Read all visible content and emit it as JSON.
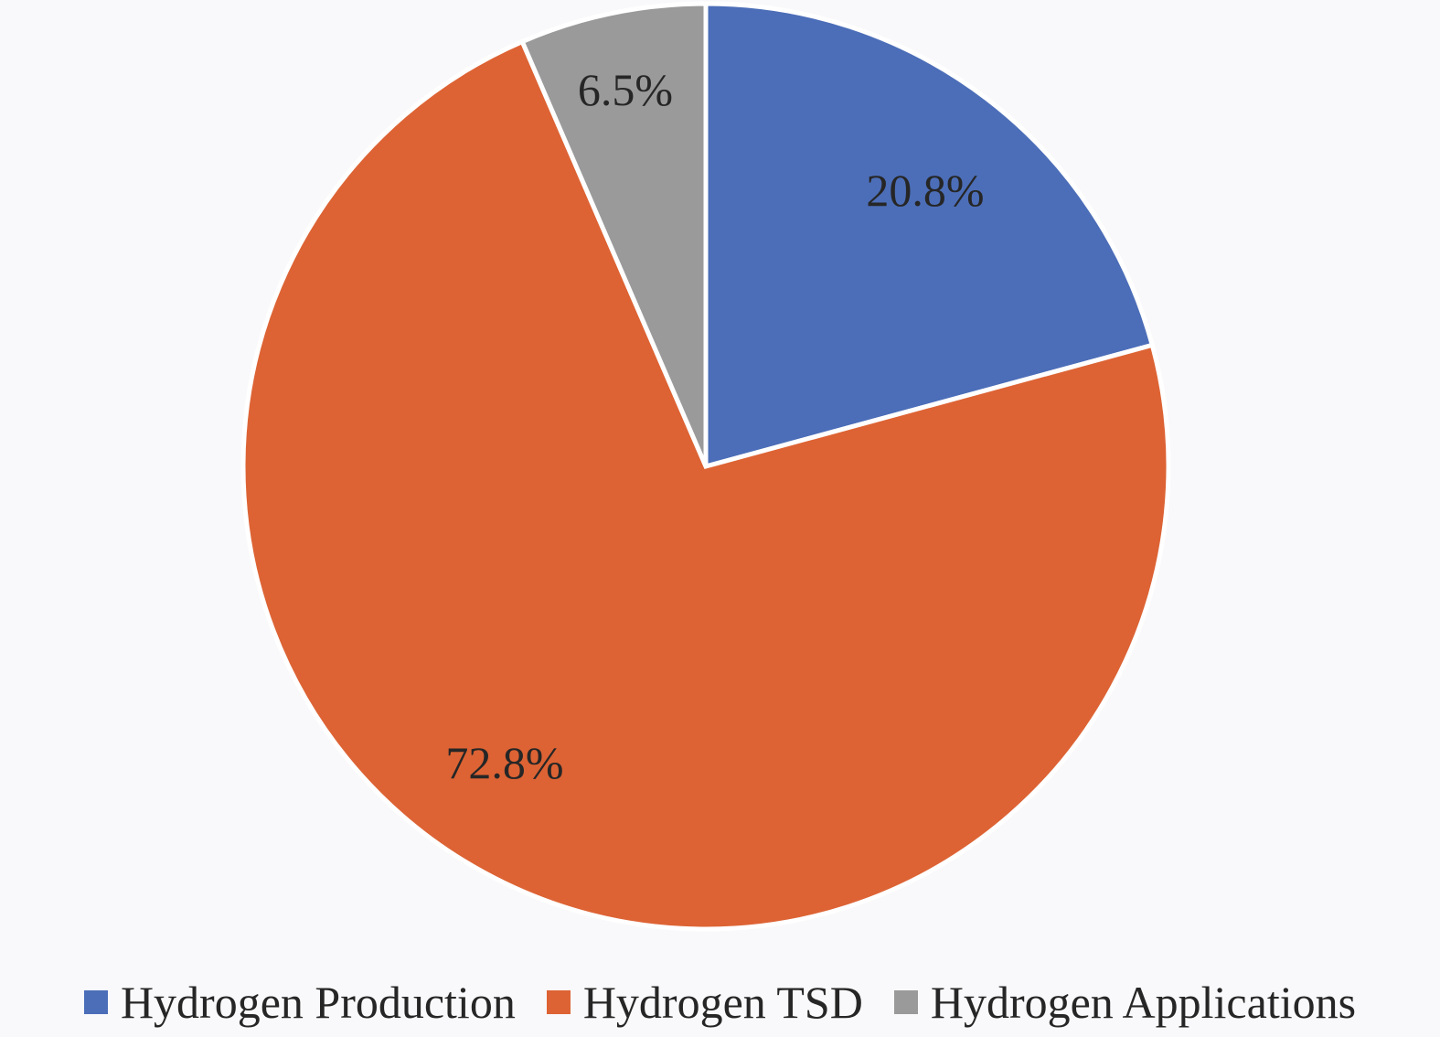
{
  "chart_data": {
    "type": "pie",
    "title": "",
    "slices": [
      {
        "name": "Hydrogen Production",
        "value": 20.8,
        "label": "20.8%",
        "color": "#4c6eb8"
      },
      {
        "name": "Hydrogen TSD",
        "value": 72.8,
        "label": "72.8%",
        "color": "#dd6334"
      },
      {
        "name": "Hydrogen Applications",
        "value": 6.5,
        "label": "6.5%",
        "color": "#9a9a9a"
      }
    ],
    "start_angle_deg": 0,
    "direction": "clockwise",
    "legend_position": "bottom"
  }
}
